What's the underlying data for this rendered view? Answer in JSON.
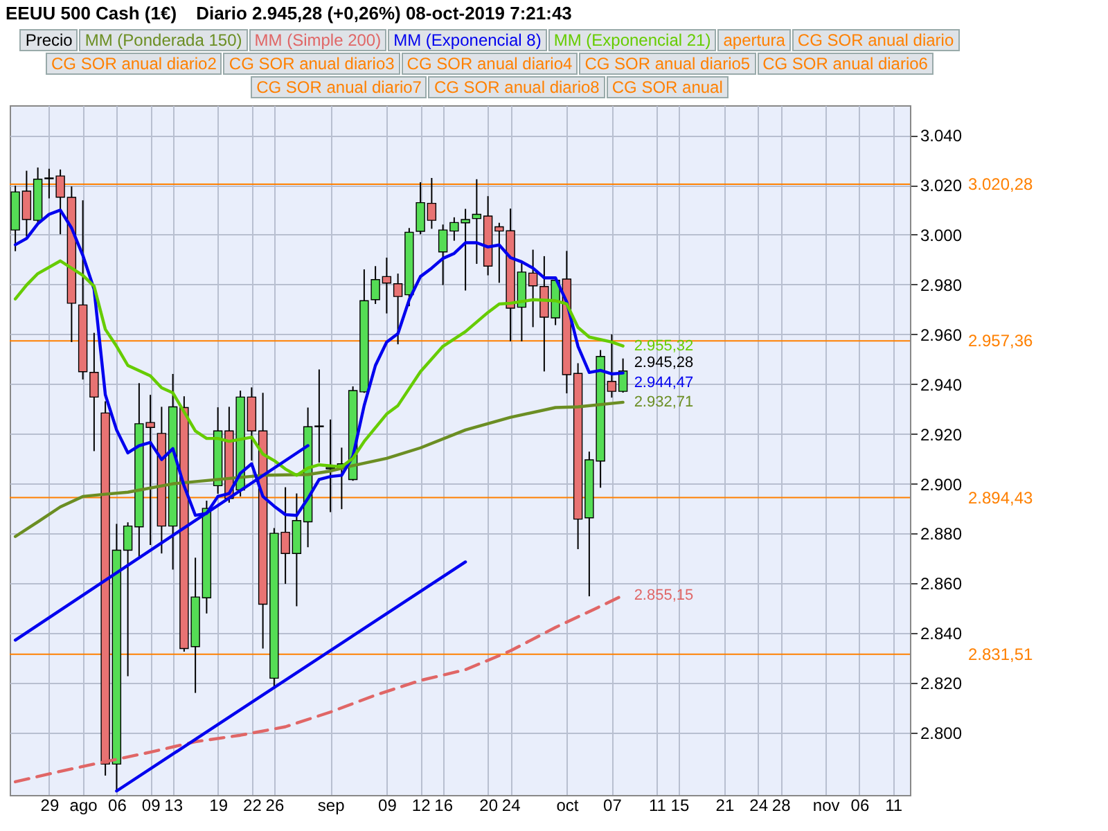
{
  "chart_data": {
    "type": "candlestick",
    "title": "EEUU 500 Cash (1€)",
    "subtitle": "Diario   2.945,28 (+0,26%)   08-oct-2019 7:21:43",
    "categories": [
      null,
      null,
      null,
      "29",
      null,
      null,
      "ago",
      null,
      null,
      "06",
      null,
      null,
      "09",
      null,
      "13",
      null,
      null,
      null,
      "19",
      null,
      null,
      "22",
      null,
      "26",
      null,
      null,
      null,
      null,
      "sep",
      null,
      null,
      null,
      null,
      "09",
      null,
      null,
      "12",
      null,
      "16",
      null,
      null,
      null,
      "20",
      null,
      "24",
      null,
      null,
      null,
      null,
      "oct",
      null,
      null,
      null,
      "07",
      null,
      null,
      null,
      "11",
      null,
      "15",
      null,
      null,
      null,
      "21",
      null,
      null,
      "24",
      null,
      "28",
      null,
      null,
      null,
      "nov",
      null,
      null,
      "06",
      null,
      null,
      "11",
      null
    ],
    "series": [
      {
        "name": "Precio",
        "ohlc": [
          [
            3001.9,
            3019.7,
            2993.4,
            3017.2
          ],
          [
            3017.5,
            3025.7,
            2999.3,
            3006.1
          ],
          [
            3005.8,
            3027.0,
            3004.4,
            3022.3
          ],
          [
            3022.5,
            3026.5,
            3014.6,
            3022.8
          ],
          [
            3023.6,
            3026.2,
            3000.2,
            3015.1
          ],
          [
            3015.0,
            3019.4,
            2956.9,
            2972.5
          ],
          [
            2971.8,
            3013.8,
            2941.9,
            2945.0
          ],
          [
            2944.7,
            2960.6,
            2913.1,
            2934.8
          ],
          [
            2928.4,
            2933.1,
            2782.8,
            2787.4
          ],
          [
            2787.4,
            2883.9,
            2776.9,
            2873.3
          ],
          [
            2873.3,
            2884.5,
            2822.7,
            2883.0
          ],
          [
            2882.7,
            2940.4,
            2870.6,
            2924.1
          ],
          [
            2924.6,
            2935.7,
            2875.4,
            2922.6
          ],
          [
            2920.2,
            2930.9,
            2872.0,
            2883.0
          ],
          [
            2883.0,
            2944.1,
            2865.5,
            2930.9
          ],
          [
            2930.6,
            2935.1,
            2832.6,
            2833.8
          ],
          [
            2834.6,
            2870.3,
            2816.0,
            2854.5
          ],
          [
            2854.2,
            2893.2,
            2847.9,
            2890.1
          ],
          [
            2899.2,
            2930.7,
            2896.0,
            2921.2
          ],
          [
            2921.2,
            2930.9,
            2892.4,
            2894.1
          ],
          [
            2897.5,
            2937.4,
            2894.9,
            2934.8
          ],
          [
            2934.8,
            2938.7,
            2909.3,
            2921.2
          ],
          [
            2921.2,
            2936.5,
            2833.8,
            2851.6
          ],
          [
            2821.9,
            2882.2,
            2818.5,
            2880.1
          ],
          [
            2880.5,
            2898.6,
            2859.8,
            2872.0
          ],
          [
            2872.0,
            2896.1,
            2850.8,
            2885.2
          ],
          [
            2884.7,
            2930.6,
            2874.5,
            2922.9
          ],
          [
            2922.9,
            2945.9,
            2908.5,
            2923.2
          ],
          [
            2906.0,
            2925.8,
            2888.6,
            2906.5
          ],
          [
            2906.0,
            2914.5,
            2889.8,
            2908.0
          ],
          [
            2901.7,
            2939.1,
            2901.2,
            2937.4
          ],
          [
            2936.9,
            2986.1,
            2936.5,
            2973.5
          ],
          [
            2973.9,
            2987.4,
            2972.2,
            2982.0
          ],
          [
            2983.2,
            2990.8,
            2968.4,
            2980.6
          ],
          [
            2980.3,
            2984.4,
            2956.0,
            2975.2
          ],
          [
            2975.9,
            3002.7,
            2971.3,
            3001.0
          ],
          [
            3001.4,
            3021.1,
            3000.2,
            3012.9
          ],
          [
            3012.6,
            3022.8,
            3002.4,
            3005.8
          ],
          [
            2993.1,
            3004.1,
            2979.8,
            3001.9
          ],
          [
            3001.5,
            3007.0,
            2997.6,
            3004.9
          ],
          [
            3004.8,
            3010.4,
            2977.6,
            3006.1
          ],
          [
            3006.5,
            3022.3,
            2988.3,
            3008.2
          ],
          [
            3007.5,
            3015.5,
            2983.7,
            2987.4
          ],
          [
            3003.2,
            3004.8,
            2980.7,
            3001.5
          ],
          [
            3001.6,
            3010.5,
            2957.2,
            2970.5
          ],
          [
            2970.9,
            2989.5,
            2957.2,
            2985.0
          ],
          [
            2984.6,
            2994.0,
            2962.9,
            2979.5
          ],
          [
            2979.2,
            2991.4,
            2945.1,
            2966.9
          ],
          [
            2966.6,
            2982.7,
            2963.7,
            2981.7
          ],
          [
            2982.2,
            2993.5,
            2936.3,
            2943.8
          ],
          [
            2944.3,
            2948.4,
            2873.7,
            2885.8
          ],
          [
            2886.3,
            2912.9,
            2854.8,
            2909.6
          ],
          [
            2909.1,
            2953.7,
            2898.4,
            2951.1
          ],
          [
            2941.1,
            2960.0,
            2934.6,
            2937.1
          ],
          [
            2937.1,
            2950.3,
            2936.6,
            2945.28
          ],
          null,
          null,
          null,
          null,
          null,
          null,
          null,
          null,
          null,
          null,
          null,
          null,
          null,
          null,
          null,
          null,
          null,
          null,
          null,
          null,
          null,
          null,
          null,
          null,
          null
        ],
        "colors": [
          "#55dd55",
          "#e87373",
          "#55dd55",
          "#55dd55",
          "#e87373",
          "#e87373",
          "#e87373",
          "#e87373",
          "#e87373",
          "#55dd55",
          "#55dd55",
          "#55dd55",
          "#e87373",
          "#e87373",
          "#55dd55",
          "#e87373",
          "#55dd55",
          "#55dd55",
          "#55dd55",
          "#e87373",
          "#55dd55",
          "#e87373",
          "#e87373",
          "#55dd55",
          "#e87373",
          "#55dd55",
          "#55dd55",
          "#55dd55",
          "#55dd55",
          "#55dd55",
          "#55dd55",
          "#55dd55",
          "#55dd55",
          "#e87373",
          "#e87373",
          "#55dd55",
          "#55dd55",
          "#e87373",
          "#55dd55",
          "#55dd55",
          "#55dd55",
          "#55dd55",
          "#e87373",
          "#e87373",
          "#e87373",
          "#55dd55",
          "#e87373",
          "#e87373",
          "#55dd55",
          "#e87373",
          "#e87373",
          "#55dd55",
          "#55dd55",
          "#e87373",
          "#55dd55",
          null,
          null,
          null,
          null,
          null,
          null,
          null,
          null,
          null,
          null,
          null,
          null,
          null,
          null,
          null,
          null,
          null,
          null,
          null,
          null,
          null,
          null,
          null,
          null,
          null
        ],
        "value_labels": [
          null,
          null,
          null,
          null,
          null,
          null,
          null,
          null,
          null,
          null,
          null,
          null,
          null,
          null,
          null,
          null,
          null,
          null,
          null,
          null,
          null,
          null,
          null,
          null,
          null,
          null,
          null,
          null,
          null,
          null,
          null,
          null,
          null,
          null,
          null,
          null,
          null,
          null,
          null,
          null,
          null,
          null,
          null,
          null,
          null,
          null,
          null,
          null,
          null,
          null,
          null,
          null,
          null,
          null,
          "2.945,28",
          null,
          null,
          null,
          null,
          null,
          null,
          null,
          null,
          null,
          null,
          null,
          null,
          null,
          null,
          null,
          null,
          null,
          null,
          null,
          null,
          null,
          null,
          null,
          null,
          null
        ]
      },
      {
        "name": "MM (Ponderada 150)",
        "type": "line",
        "color": "#6b8e23",
        "values": [
          2878.8,
          null,
          2884.7,
          null,
          2890.7,
          null,
          2894.9,
          null,
          2895.8,
          null,
          2896.6,
          null,
          null,
          null,
          2900.0,
          null,
          null,
          null,
          2901.7,
          null,
          null,
          null,
          2903.4,
          null,
          null,
          null,
          2903.7,
          null,
          2905.1,
          null,
          2907.3,
          null,
          null,
          2910.2,
          null,
          null,
          2914.4,
          null,
          null,
          null,
          2921.6,
          null,
          null,
          null,
          2926.7,
          null,
          null,
          null,
          2930.6,
          null,
          2930.9,
          null,
          null,
          null,
          2932.71,
          null,
          null,
          null,
          null,
          null,
          null,
          null,
          null,
          null,
          null,
          null,
          null,
          null,
          null,
          null,
          null,
          null,
          null,
          null,
          null,
          null,
          null,
          null,
          null,
          null
        ],
        "value_labels": [
          null,
          null,
          null,
          null,
          null,
          null,
          null,
          null,
          null,
          null,
          null,
          null,
          null,
          null,
          null,
          null,
          null,
          null,
          null,
          null,
          null,
          null,
          null,
          null,
          null,
          null,
          null,
          null,
          null,
          null,
          null,
          null,
          null,
          null,
          null,
          null,
          null,
          null,
          null,
          null,
          null,
          null,
          null,
          null,
          null,
          null,
          null,
          null,
          null,
          null,
          null,
          null,
          null,
          null,
          "2.932,71",
          null,
          null,
          null,
          null,
          null,
          null,
          null,
          null,
          null,
          null,
          null,
          null,
          null,
          null,
          null,
          null,
          null,
          null,
          null,
          null,
          null,
          null,
          null,
          null,
          null
        ]
      },
      {
        "name": "MM (Simple 200)",
        "type": "line",
        "color": "#e06666",
        "line_style": "dashed",
        "values": [
          2780.3,
          null,
          null,
          null,
          2784.5,
          null,
          null,
          null,
          2788.4,
          null,
          null,
          null,
          2792.2,
          null,
          null,
          null,
          2796.4,
          null,
          null,
          null,
          2799.0,
          null,
          null,
          null,
          2802.4,
          null,
          null,
          null,
          2808.3,
          null,
          null,
          null,
          2815.1,
          null,
          null,
          null,
          2821.0,
          null,
          null,
          null,
          2825.3,
          null,
          null,
          null,
          2832.9,
          null,
          null,
          null,
          2842.3,
          null,
          null,
          null,
          2850.8,
          null,
          2855.15,
          null,
          null,
          null,
          null,
          null,
          null,
          null,
          null,
          null,
          null,
          null,
          null,
          null,
          null,
          null,
          null,
          null,
          null,
          null,
          null,
          null,
          null,
          null,
          null,
          null
        ],
        "value_labels": [
          null,
          null,
          null,
          null,
          null,
          null,
          null,
          null,
          null,
          null,
          null,
          null,
          null,
          null,
          null,
          null,
          null,
          null,
          null,
          null,
          null,
          null,
          null,
          null,
          null,
          null,
          null,
          null,
          null,
          null,
          null,
          null,
          null,
          null,
          null,
          null,
          null,
          null,
          null,
          null,
          null,
          null,
          null,
          null,
          null,
          null,
          null,
          null,
          null,
          null,
          null,
          null,
          null,
          null,
          "2.855,15",
          null,
          null,
          null,
          null,
          null,
          null,
          null,
          null,
          null,
          null,
          null,
          null,
          null,
          null,
          null,
          null,
          null,
          null,
          null,
          null,
          null,
          null,
          null,
          null,
          null
        ]
      },
      {
        "name": "MM (Exponencial 8)",
        "type": "line",
        "color": "#0000ee",
        "values": [
          2996.0,
          2998.5,
          3004.4,
          3008.2,
          3009.9,
          3002.7,
          2991.7,
          2978.1,
          2935.7,
          2921.6,
          2912.4,
          2915.3,
          2916.6,
          2909.7,
          2914.1,
          2899.1,
          2887.3,
          2888.1,
          2894.9,
          2896.1,
          2904.2,
          2908.0,
          2894.9,
          2891.0,
          2887.6,
          2887.3,
          2894.1,
          2901.7,
          2902.9,
          2903.4,
          2911.0,
          2931.4,
          2947.5,
          2956.9,
          2960.3,
          2973.9,
          2983.2,
          2986.6,
          2990.5,
          2992.5,
          2996.8,
          2996.8,
          2995.1,
          2995.9,
          2990.8,
          2989.1,
          2986.6,
          2982.7,
          2982.7,
          2973.0,
          2955.2,
          2944.7,
          2945.5,
          2944.1,
          2944.47,
          null,
          null,
          null,
          null,
          null,
          null,
          null,
          null,
          null,
          null,
          null,
          null,
          null,
          null,
          null,
          null,
          null,
          null,
          null,
          null,
          null,
          null,
          null,
          null,
          null
        ],
        "value_labels": [
          null,
          null,
          null,
          null,
          null,
          null,
          null,
          null,
          null,
          null,
          null,
          null,
          null,
          null,
          null,
          null,
          null,
          null,
          null,
          null,
          null,
          null,
          null,
          null,
          null,
          null,
          null,
          null,
          null,
          null,
          null,
          null,
          null,
          null,
          null,
          null,
          null,
          null,
          null,
          null,
          null,
          null,
          null,
          null,
          null,
          null,
          null,
          null,
          null,
          null,
          null,
          null,
          null,
          null,
          "2.944,47",
          null,
          null,
          null,
          null,
          null,
          null,
          null,
          null,
          null,
          null,
          null,
          null,
          null,
          null,
          null,
          null,
          null,
          null,
          null,
          null,
          null,
          null,
          null,
          null,
          null
        ]
      },
      {
        "name": "MM (Exponencial 21)",
        "type": "line",
        "color": "#66cc00",
        "values": [
          2974.2,
          2979.8,
          2984.4,
          null,
          2989.5,
          null,
          2983.7,
          2979.3,
          2962.0,
          2955.2,
          2947.5,
          null,
          2943.3,
          2938.5,
          2936.5,
          null,
          2921.2,
          2918.2,
          2918.2,
          2917.0,
          null,
          2918.7,
          2911.9,
          2909.3,
          2905.9,
          2903.4,
          2906.3,
          2907.6,
          null,
          2906.8,
          2910.2,
          2917.0,
          null,
          2928.0,
          2931.4,
          null,
          2945.0,
          null,
          2955.2,
          null,
          2961.1,
          null,
          2968.8,
          2972.2,
          2972.5,
          null,
          2973.9,
          null,
          2973.5,
          2972.2,
          2962.8,
          2958.9,
          null,
          2956.9,
          2955.32,
          null,
          null,
          null,
          null,
          null,
          null,
          null,
          null,
          null,
          null,
          null,
          null,
          null,
          null,
          null,
          null,
          null,
          null,
          null,
          null,
          null,
          null,
          null,
          null,
          null
        ],
        "value_labels": [
          null,
          null,
          null,
          null,
          null,
          null,
          null,
          null,
          null,
          null,
          null,
          null,
          null,
          null,
          null,
          null,
          null,
          null,
          null,
          null,
          null,
          null,
          null,
          null,
          null,
          null,
          null,
          null,
          null,
          null,
          null,
          null,
          null,
          null,
          null,
          null,
          null,
          null,
          null,
          null,
          null,
          null,
          null,
          null,
          null,
          null,
          null,
          null,
          null,
          null,
          null,
          null,
          null,
          null,
          "2.955,32",
          null,
          null,
          null,
          null,
          null,
          null,
          null,
          null,
          null,
          null,
          null,
          null,
          null,
          null,
          null,
          null,
          null,
          null,
          null,
          null,
          null,
          null,
          null,
          null,
          null
        ]
      },
      {
        "type": "line",
        "color": "#0000ee",
        "values": [
          2837.2,
          null,
          null,
          null,
          null,
          null,
          null,
          null,
          null,
          null,
          null,
          null,
          null,
          null,
          null,
          null,
          null,
          null,
          null,
          null,
          null,
          null,
          null,
          null,
          null,
          null,
          2915.3,
          null,
          null,
          null,
          null,
          null,
          null,
          null,
          null,
          null,
          null,
          null,
          null,
          null,
          null,
          null,
          null,
          null,
          null,
          null,
          null,
          null,
          null,
          null,
          null,
          null,
          null,
          null,
          null,
          null,
          null,
          null,
          null,
          null,
          null,
          null,
          null,
          null,
          null,
          null,
          null,
          null,
          null,
          null,
          null,
          null,
          null,
          null,
          null,
          null,
          null,
          null,
          null,
          null
        ]
      },
      {
        "type": "line",
        "color": "#0000ee",
        "values": [
          null,
          null,
          null,
          null,
          null,
          null,
          null,
          null,
          null,
          2776.6,
          null,
          null,
          null,
          null,
          null,
          null,
          null,
          null,
          null,
          null,
          null,
          null,
          null,
          null,
          null,
          null,
          null,
          null,
          null,
          null,
          null,
          null,
          null,
          null,
          null,
          null,
          null,
          null,
          null,
          null,
          2868.6,
          null,
          null,
          null,
          null,
          null,
          null,
          null,
          null,
          null,
          null,
          null,
          null,
          null,
          null,
          null,
          null,
          null,
          null,
          null,
          null,
          null,
          null,
          null,
          null,
          null,
          null,
          null,
          null,
          null,
          null,
          null,
          null,
          null,
          null,
          null,
          null,
          null,
          null,
          null
        ]
      }
    ],
    "ylim": [
      2775,
      3052
    ],
    "yticks": [
      {
        "value": 2800,
        "label": "2.800"
      },
      {
        "value": 2820,
        "label": "2.820"
      },
      {
        "value": 2840,
        "label": "2.840"
      },
      {
        "value": 2860,
        "label": "2.860"
      },
      {
        "value": 2880,
        "label": "2.880"
      },
      {
        "value": 2900,
        "label": "2.900"
      },
      {
        "value": 2920,
        "label": "2.920"
      },
      {
        "value": 2940,
        "label": "2.940"
      },
      {
        "value": 2960,
        "label": "2.960"
      },
      {
        "value": 2980,
        "label": "2.980"
      },
      {
        "value": 3000,
        "label": "3.000"
      },
      {
        "value": 3020,
        "label": "3.020"
      },
      {
        "value": 3040,
        "label": "3.040"
      }
    ],
    "ref_lines": [
      {
        "axis": "y",
        "value": 3020.28,
        "label": "3.020,28",
        "color": "#ff8000"
      },
      {
        "axis": "y",
        "value": 2957.36,
        "label": "2.957,36",
        "color": "#ff8000"
      },
      {
        "axis": "y",
        "value": 2894.43,
        "label": "2.894,43",
        "color": "#ff8000"
      },
      {
        "axis": "y",
        "value": 2831.51,
        "label": "2.831,51",
        "color": "#ff8000"
      }
    ],
    "annotations": [
      "apertura",
      "CG SOR anual diario",
      "CG SOR anual diario2",
      "CG SOR anual diario3",
      "CG SOR anual diario4",
      "CG SOR anual diario5",
      "CG SOR anual diario6",
      "CG SOR anual diario7",
      "CG SOR anual diario8",
      "CG SOR anual"
    ],
    "grid": true,
    "legend": "top"
  }
}
